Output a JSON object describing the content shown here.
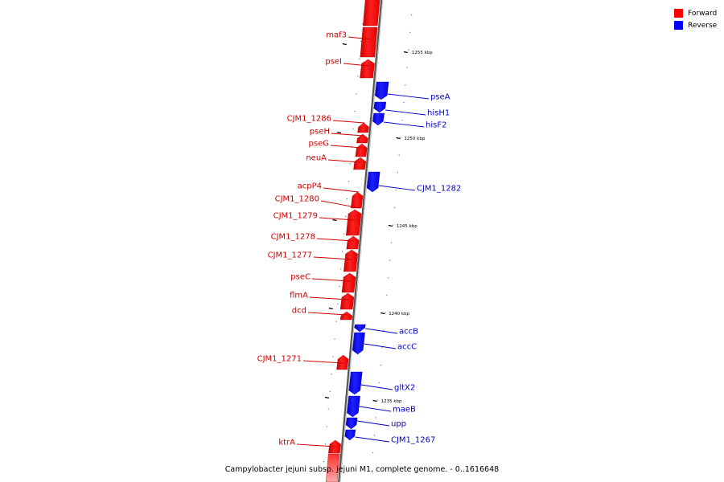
{
  "legend": {
    "forward_label": "Forward",
    "reverse_label": "Reverse",
    "forward_color": "#ff0000",
    "reverse_color": "#0000ff"
  },
  "caption": "Campylobacter jejuni subsp. jejuni M1, complete genome. - 0..1616648",
  "scale_ticks": [
    "1255 kbp",
    "1250 kbp",
    "1245 kbp",
    "1240 kbp",
    "1235 kbp"
  ],
  "forward_genes": [
    "maf3",
    "pseI",
    "CJM1_1286",
    "pseH",
    "pseG",
    "neuA",
    "acpP4",
    "CJM1_1280",
    "CJM1_1279",
    "CJM1_1278",
    "CJM1_1277",
    "pseC",
    "flmA",
    "dcd",
    "CJM1_1271",
    "ktrA"
  ],
  "reverse_genes": [
    "pseA",
    "hisH1",
    "hisF2",
    "CJM1_1282",
    "accB",
    "accC",
    "gltX2",
    "maeB",
    "upp",
    "CJM1_1267"
  ]
}
